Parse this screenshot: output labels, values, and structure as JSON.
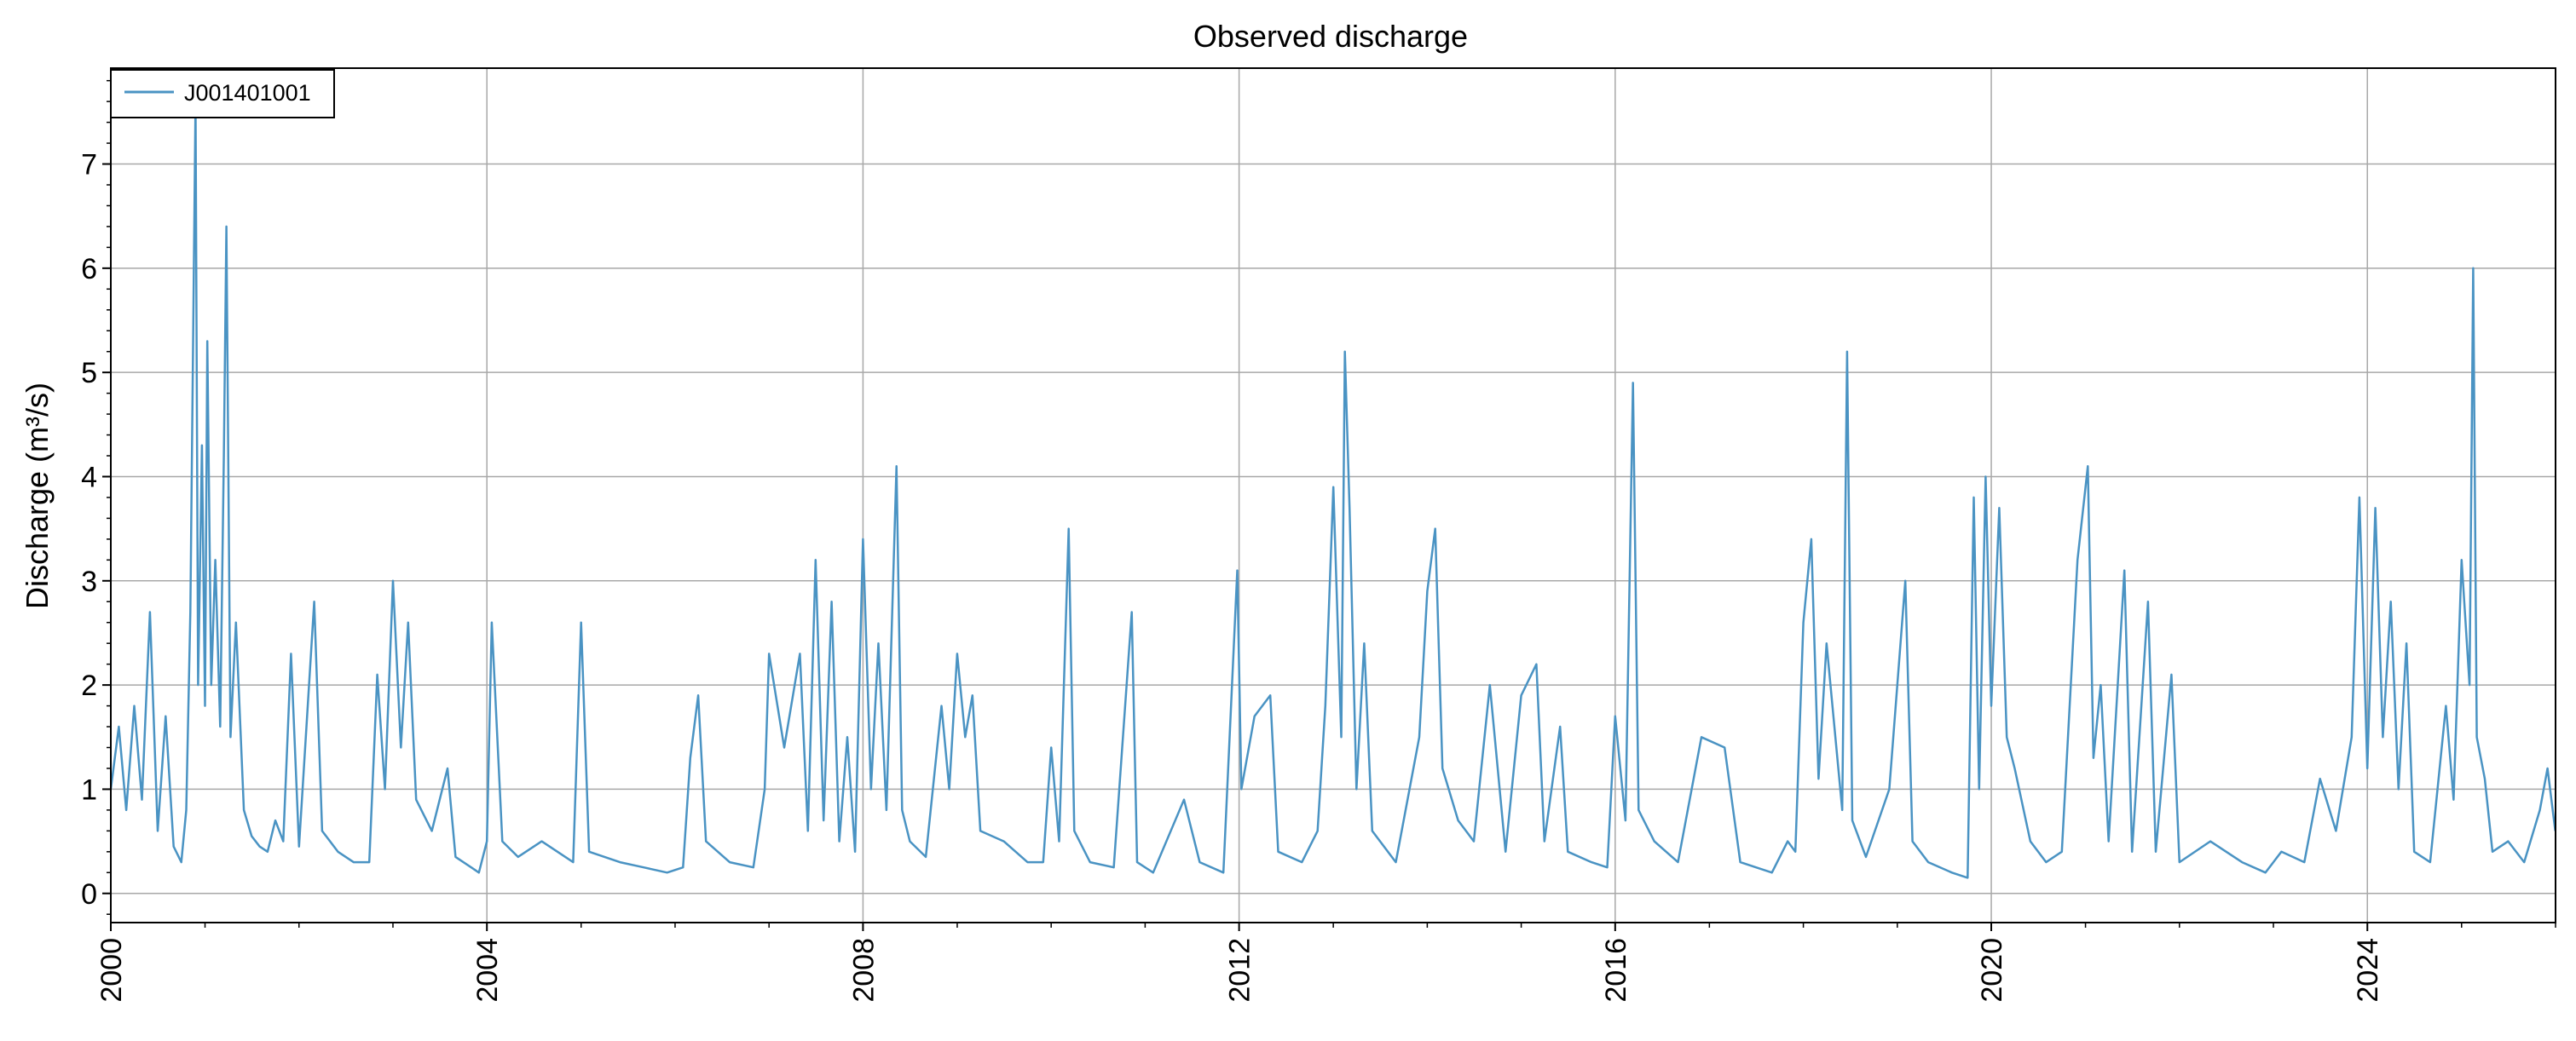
{
  "chart_data": {
    "type": "line",
    "title": "Observed discharge",
    "xlabel": "",
    "ylabel": "Discharge (m³/s)",
    "xlim": [
      "2000-01-01",
      "2026-01-01"
    ],
    "ylim": [
      -0.28,
      7.92
    ],
    "x_ticks": [
      "2000",
      "2004",
      "2008",
      "2012",
      "2016",
      "2020",
      "2024"
    ],
    "y_ticks": [
      0,
      1,
      2,
      3,
      4,
      5,
      6,
      7
    ],
    "grid": true,
    "legend": "top-left",
    "series": [
      {
        "name": "J001401001",
        "color": "#4a93c3",
        "points": [
          [
            "2000-01-01",
            1.0
          ],
          [
            "2000-02-01",
            1.6
          ],
          [
            "2000-03-01",
            0.8
          ],
          [
            "2000-04-01",
            1.8
          ],
          [
            "2000-05-01",
            0.9
          ],
          [
            "2000-06-01",
            2.7
          ],
          [
            "2000-07-01",
            0.6
          ],
          [
            "2000-08-01",
            1.7
          ],
          [
            "2000-09-01",
            0.45
          ],
          [
            "2000-10-01",
            0.3
          ],
          [
            "2000-10-20",
            0.8
          ],
          [
            "2000-11-05",
            2.7
          ],
          [
            "2000-11-15",
            5.1
          ],
          [
            "2000-11-25",
            7.6
          ],
          [
            "2000-12-05",
            2.0
          ],
          [
            "2000-12-20",
            4.3
          ],
          [
            "2001-01-01",
            1.8
          ],
          [
            "2001-01-10",
            5.3
          ],
          [
            "2001-01-25",
            2.0
          ],
          [
            "2001-02-10",
            3.2
          ],
          [
            "2001-03-01",
            1.6
          ],
          [
            "2001-03-15",
            4.2
          ],
          [
            "2001-03-25",
            6.4
          ],
          [
            "2001-04-10",
            1.5
          ],
          [
            "2001-05-01",
            2.6
          ],
          [
            "2001-06-01",
            0.8
          ],
          [
            "2001-07-01",
            0.55
          ],
          [
            "2001-08-01",
            0.45
          ],
          [
            "2001-09-01",
            0.4
          ],
          [
            "2001-10-01",
            0.7
          ],
          [
            "2001-11-01",
            0.5
          ],
          [
            "2001-12-01",
            2.3
          ],
          [
            "2002-01-01",
            0.45
          ],
          [
            "2002-03-01",
            2.8
          ],
          [
            "2002-04-01",
            0.6
          ],
          [
            "2002-06-01",
            0.4
          ],
          [
            "2002-08-01",
            0.3
          ],
          [
            "2002-10-01",
            0.3
          ],
          [
            "2002-11-01",
            2.1
          ],
          [
            "2002-12-01",
            1.0
          ],
          [
            "2003-01-01",
            3.0
          ],
          [
            "2003-02-01",
            1.4
          ],
          [
            "2003-03-01",
            2.6
          ],
          [
            "2003-04-01",
            0.9
          ],
          [
            "2003-06-01",
            0.6
          ],
          [
            "2003-08-01",
            1.2
          ],
          [
            "2003-09-01",
            0.35
          ],
          [
            "2003-11-01",
            0.25
          ],
          [
            "2003-12-01",
            0.2
          ],
          [
            "2004-01-01",
            0.5
          ],
          [
            "2004-01-20",
            2.6
          ],
          [
            "2004-03-01",
            0.5
          ],
          [
            "2004-05-01",
            0.35
          ],
          [
            "2004-08-01",
            0.5
          ],
          [
            "2004-12-01",
            0.3
          ],
          [
            "2005-01-01",
            2.6
          ],
          [
            "2005-02-01",
            0.4
          ],
          [
            "2005-06-01",
            0.3
          ],
          [
            "2005-09-01",
            0.25
          ],
          [
            "2005-12-01",
            0.2
          ],
          [
            "2006-02-01",
            0.25
          ],
          [
            "2006-03-01",
            1.3
          ],
          [
            "2006-04-01",
            1.9
          ],
          [
            "2006-05-01",
            0.5
          ],
          [
            "2006-08-01",
            0.3
          ],
          [
            "2006-11-01",
            0.25
          ],
          [
            "2006-12-15",
            1.0
          ],
          [
            "2007-01-01",
            2.3
          ],
          [
            "2007-03-01",
            1.4
          ],
          [
            "2007-05-01",
            2.3
          ],
          [
            "2007-06-01",
            0.6
          ],
          [
            "2007-07-01",
            3.2
          ],
          [
            "2007-08-01",
            0.7
          ],
          [
            "2007-09-01",
            2.8
          ],
          [
            "2007-10-01",
            0.5
          ],
          [
            "2007-11-01",
            1.5
          ],
          [
            "2007-12-01",
            0.4
          ],
          [
            "2008-01-01",
            3.4
          ],
          [
            "2008-02-01",
            1.0
          ],
          [
            "2008-03-01",
            2.4
          ],
          [
            "2008-04-01",
            0.8
          ],
          [
            "2008-05-10",
            4.1
          ],
          [
            "2008-06-01",
            0.8
          ],
          [
            "2008-07-01",
            0.5
          ],
          [
            "2008-09-01",
            0.35
          ],
          [
            "2008-11-01",
            1.8
          ],
          [
            "2008-12-01",
            1.0
          ],
          [
            "2009-01-01",
            2.3
          ],
          [
            "2009-02-01",
            1.5
          ],
          [
            "2009-03-01",
            1.9
          ],
          [
            "2009-04-01",
            0.6
          ],
          [
            "2009-07-01",
            0.5
          ],
          [
            "2009-10-01",
            0.3
          ],
          [
            "2009-12-01",
            0.3
          ],
          [
            "2010-01-01",
            1.4
          ],
          [
            "2010-02-01",
            0.5
          ],
          [
            "2010-03-10",
            3.5
          ],
          [
            "2010-04-01",
            0.6
          ],
          [
            "2010-06-01",
            0.3
          ],
          [
            "2010-09-01",
            0.25
          ],
          [
            "2010-11-10",
            2.7
          ],
          [
            "2010-12-01",
            0.3
          ],
          [
            "2011-02-01",
            0.2
          ],
          [
            "2011-06-01",
            0.9
          ],
          [
            "2011-08-01",
            0.3
          ],
          [
            "2011-11-01",
            0.2
          ],
          [
            "2011-12-25",
            3.1
          ],
          [
            "2012-01-10",
            1.0
          ],
          [
            "2012-03-01",
            1.7
          ],
          [
            "2012-05-01",
            1.9
          ],
          [
            "2012-06-01",
            0.4
          ],
          [
            "2012-09-01",
            0.3
          ],
          [
            "2012-11-01",
            0.6
          ],
          [
            "2012-12-01",
            1.8
          ],
          [
            "2013-01-01",
            3.9
          ],
          [
            "2013-02-01",
            1.5
          ],
          [
            "2013-02-15",
            5.2
          ],
          [
            "2013-03-05",
            3.7
          ],
          [
            "2013-04-01",
            1.0
          ],
          [
            "2013-05-01",
            2.4
          ],
          [
            "2013-06-01",
            0.6
          ],
          [
            "2013-09-01",
            0.3
          ],
          [
            "2013-12-01",
            1.5
          ],
          [
            "2014-01-01",
            2.9
          ],
          [
            "2014-02-01",
            3.5
          ],
          [
            "2014-03-01",
            1.2
          ],
          [
            "2014-05-01",
            0.7
          ],
          [
            "2014-07-01",
            0.5
          ],
          [
            "2014-09-01",
            2.0
          ],
          [
            "2014-11-01",
            0.4
          ],
          [
            "2015-01-01",
            1.9
          ],
          [
            "2015-03-01",
            2.2
          ],
          [
            "2015-04-01",
            0.5
          ],
          [
            "2015-06-01",
            1.6
          ],
          [
            "2015-07-01",
            0.4
          ],
          [
            "2015-10-01",
            0.3
          ],
          [
            "2015-12-01",
            0.25
          ],
          [
            "2016-01-01",
            1.7
          ],
          [
            "2016-02-10",
            0.7
          ],
          [
            "2016-03-10",
            4.9
          ],
          [
            "2016-04-01",
            0.8
          ],
          [
            "2016-06-01",
            0.5
          ],
          [
            "2016-09-01",
            0.3
          ],
          [
            "2016-12-01",
            1.5
          ],
          [
            "2017-03-01",
            1.4
          ],
          [
            "2017-05-01",
            0.3
          ],
          [
            "2017-09-01",
            0.2
          ],
          [
            "2017-11-01",
            0.5
          ],
          [
            "2017-12-01",
            0.4
          ],
          [
            "2018-01-01",
            2.6
          ],
          [
            "2018-02-01",
            3.4
          ],
          [
            "2018-03-01",
            1.1
          ],
          [
            "2018-04-01",
            2.4
          ],
          [
            "2018-06-01",
            0.8
          ],
          [
            "2018-06-20",
            5.2
          ],
          [
            "2018-07-10",
            0.7
          ],
          [
            "2018-09-01",
            0.35
          ],
          [
            "2018-12-01",
            1.0
          ],
          [
            "2019-02-01",
            3.0
          ],
          [
            "2019-03-01",
            0.5
          ],
          [
            "2019-05-01",
            0.3
          ],
          [
            "2019-08-01",
            0.2
          ],
          [
            "2019-10-01",
            0.15
          ],
          [
            "2019-10-25",
            3.8
          ],
          [
            "2019-11-15",
            1.0
          ],
          [
            "2019-12-10",
            4.0
          ],
          [
            "2020-01-01",
            1.8
          ],
          [
            "2020-02-01",
            3.7
          ],
          [
            "2020-03-01",
            1.5
          ],
          [
            "2020-04-01",
            1.2
          ],
          [
            "2020-06-01",
            0.5
          ],
          [
            "2020-08-01",
            0.3
          ],
          [
            "2020-10-01",
            0.4
          ],
          [
            "2020-12-01",
            3.2
          ],
          [
            "2021-01-10",
            4.1
          ],
          [
            "2021-02-01",
            1.3
          ],
          [
            "2021-03-01",
            2.0
          ],
          [
            "2021-04-01",
            0.5
          ],
          [
            "2021-06-01",
            3.1
          ],
          [
            "2021-07-01",
            0.4
          ],
          [
            "2021-09-01",
            2.8
          ],
          [
            "2021-10-01",
            0.4
          ],
          [
            "2021-12-01",
            2.1
          ],
          [
            "2022-01-01",
            0.3
          ],
          [
            "2022-05-01",
            0.5
          ],
          [
            "2022-09-01",
            0.3
          ],
          [
            "2022-12-01",
            0.2
          ],
          [
            "2023-02-01",
            0.4
          ],
          [
            "2023-05-01",
            0.3
          ],
          [
            "2023-07-01",
            1.1
          ],
          [
            "2023-09-01",
            0.6
          ],
          [
            "2023-11-01",
            1.5
          ],
          [
            "2023-12-01",
            3.8
          ],
          [
            "2024-01-01",
            1.2
          ],
          [
            "2024-02-01",
            3.7
          ],
          [
            "2024-03-01",
            1.5
          ],
          [
            "2024-04-01",
            2.8
          ],
          [
            "2024-05-01",
            1.0
          ],
          [
            "2024-06-01",
            2.4
          ],
          [
            "2024-07-01",
            0.4
          ],
          [
            "2024-09-01",
            0.3
          ],
          [
            "2024-11-01",
            1.8
          ],
          [
            "2024-12-01",
            0.9
          ],
          [
            "2025-01-01",
            3.2
          ],
          [
            "2025-02-01",
            2.0
          ],
          [
            "2025-02-15",
            6.0
          ],
          [
            "2025-03-01",
            1.5
          ],
          [
            "2025-04-01",
            1.1
          ],
          [
            "2025-05-01",
            0.4
          ],
          [
            "2025-07-01",
            0.5
          ],
          [
            "2025-09-01",
            0.3
          ],
          [
            "2025-11-01",
            0.8
          ],
          [
            "2025-12-01",
            1.2
          ],
          [
            "2025-12-31",
            0.6
          ]
        ]
      }
    ]
  }
}
